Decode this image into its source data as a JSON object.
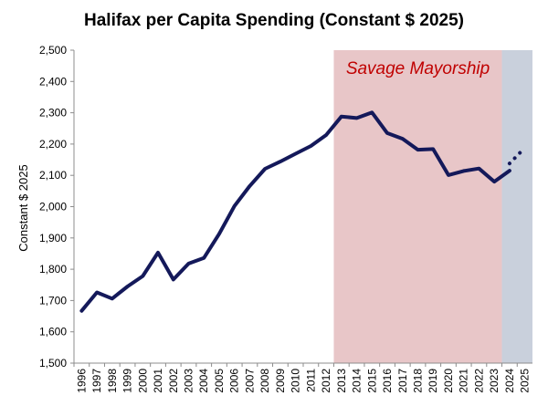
{
  "chart_data": {
    "type": "line",
    "title": "Halifax per Capita Spending (Constant $ 2025)",
    "ylabel": "Constant $ 2025",
    "xlabel": "",
    "ylim": [
      1500,
      2500
    ],
    "yticks": [
      1500,
      1600,
      1700,
      1800,
      1900,
      2000,
      2100,
      2200,
      2300,
      2400,
      2500
    ],
    "ytick_labels": [
      "1,500",
      "1,600",
      "1,700",
      "1,800",
      "1,900",
      "2,000",
      "2,100",
      "2,200",
      "2,300",
      "2,400",
      "2,500"
    ],
    "x": [
      "1996",
      "1997",
      "1998",
      "1999",
      "2000",
      "2001",
      "2002",
      "2003",
      "2004",
      "2005",
      "2006",
      "2007",
      "2008",
      "2009",
      "2010",
      "2011",
      "2012",
      "2013",
      "2014",
      "2015",
      "2016",
      "2017",
      "2018",
      "2019",
      "2020",
      "2021",
      "2022",
      "2023",
      "2024",
      "2025"
    ],
    "grid": false,
    "series": [
      {
        "style": "solid",
        "color": "#14195a",
        "x": [
          "1996",
          "1997",
          "1998",
          "1999",
          "2000",
          "2001",
          "2002",
          "2003",
          "2004",
          "2005",
          "2006",
          "2007",
          "2008",
          "2009",
          "2010",
          "2011",
          "2012",
          "2013",
          "2014",
          "2015",
          "2016",
          "2017",
          "2018",
          "2019",
          "2020",
          "2021",
          "2022",
          "2023",
          "2024"
        ],
        "values": [
          1667,
          1726,
          1706,
          1745,
          1778,
          1853,
          1767,
          1818,
          1836,
          1913,
          2002,
          2066,
          2121,
          2144,
          2169,
          2194,
          2229,
          2288,
          2283,
          2301,
          2235,
          2217,
          2182,
          2184,
          2101,
          2114,
          2122,
          2080,
          2115
        ]
      },
      {
        "style": "dotted",
        "color": "#14195a",
        "x": [
          "2024",
          "2025"
        ],
        "values": [
          2138,
          2188
        ]
      }
    ],
    "shaded_regions": [
      {
        "label": "Savage Mayorship",
        "from": "2013",
        "to": "2024",
        "color": "#e8c6c8",
        "label_color": "#c00000"
      },
      {
        "label": "",
        "from": "2024",
        "to": "2025",
        "color": "#c9d0dc"
      }
    ]
  }
}
